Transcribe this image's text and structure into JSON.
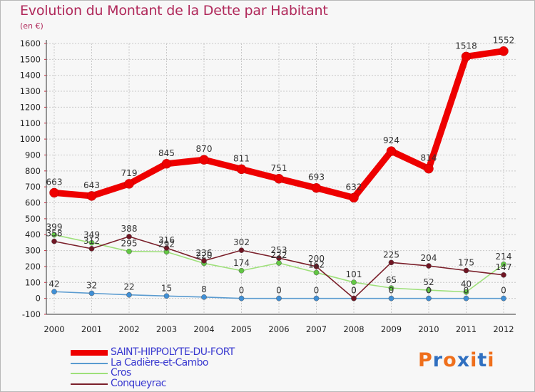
{
  "header": {
    "title": "Evolution du Montant de la Dette par Habitant",
    "unit": "(en €)"
  },
  "brand": {
    "text": "Proxiti",
    "colors": [
      "#ef6f1c",
      "#2f6fc0",
      "#ef6f1c",
      "#2f6fc0",
      "#ef6f1c",
      "#2f6fc0",
      "#ef6f1c"
    ]
  },
  "colors": {
    "title": "#b0285a",
    "legend_text": "#3a3ad0",
    "grid": "#c8c8c8",
    "axis": "#333333"
  },
  "chart_data": {
    "type": "line",
    "title": "Evolution du Montant de la Dette par Habitant",
    "subtitle": "(en €)",
    "xlabel": "",
    "ylabel": "",
    "ylim": [
      -100,
      1600
    ],
    "yticks": [
      -100,
      0,
      100,
      200,
      300,
      400,
      500,
      600,
      700,
      800,
      900,
      1000,
      1100,
      1200,
      1300,
      1400,
      1500,
      1600
    ],
    "categories": [
      "2000",
      "2001",
      "2002",
      "2003",
      "2004",
      "2005",
      "2006",
      "2007",
      "2008",
      "2009",
      "2010",
      "2011",
      "2012"
    ],
    "grid": true,
    "legend_position": "bottom-left",
    "series": [
      {
        "name": "SAINT-HIPPOLYTE-DU-FORT",
        "values": [
          663,
          643,
          719,
          845,
          870,
          811,
          751,
          693,
          632,
          924,
          814,
          1518,
          1552
        ],
        "color": "#ee0000",
        "marker_color": "#ee0000",
        "emphasis": true
      },
      {
        "name": "La Cadière-et-Cambo",
        "values": [
          42,
          32,
          22,
          15,
          8,
          0,
          0,
          0,
          0,
          0,
          0,
          0,
          0
        ],
        "color": "#5a9bd0",
        "marker_color": "#3f8fd6",
        "emphasis": false
      },
      {
        "name": "Cros",
        "values": [
          399,
          349,
          295,
          292,
          220,
          174,
          222,
          162,
          101,
          65,
          52,
          40,
          214
        ],
        "color": "#9ee07a",
        "marker_color": "#62c744",
        "emphasis": false
      },
      {
        "name": "Conqueyrac",
        "values": [
          358,
          312,
          388,
          316,
          236,
          302,
          253,
          200,
          0,
          225,
          204,
          175,
          147
        ],
        "color": "#7a1f2a",
        "marker_color": "#701624",
        "emphasis": false
      }
    ]
  }
}
